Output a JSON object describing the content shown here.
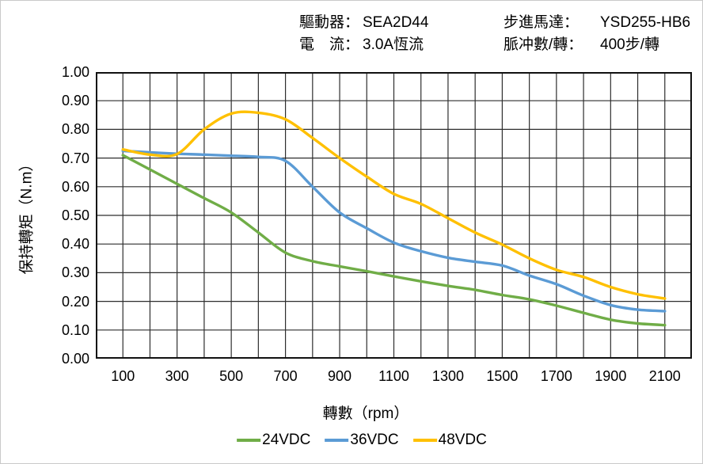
{
  "header": {
    "items": [
      {
        "label": "驅動器：",
        "value": "SEA2D44",
        "col": 0,
        "row": 0
      },
      {
        "label": "電　流：",
        "value": "3.0A恆流",
        "col": 0,
        "row": 1
      },
      {
        "label": "步進馬達：",
        "value": "YSD255-HB6",
        "col": 1,
        "row": 0
      },
      {
        "label": "脈冲數/轉：",
        "value": "400步/轉",
        "col": 1,
        "row": 1
      }
    ]
  },
  "chart_data": {
    "type": "line",
    "title": "",
    "xlabel": "轉數（rpm）",
    "ylabel": "保持轉矩（N.m）",
    "xlim": [
      0,
      2200
    ],
    "ylim": [
      0,
      1.0
    ],
    "grid": {
      "on": true,
      "x_step": 100,
      "y_step": 0.1
    },
    "x_ticks": [
      100,
      300,
      500,
      700,
      900,
      1100,
      1300,
      1500,
      1700,
      1900,
      2100
    ],
    "y_ticks": [
      0.0,
      0.1,
      0.2,
      0.3,
      0.4,
      0.5,
      0.6,
      0.7,
      0.8,
      0.9,
      1.0
    ],
    "y_tick_format_decimals": 2,
    "legend_position": "bottom",
    "x": [
      100,
      200,
      300,
      400,
      500,
      600,
      700,
      800,
      900,
      1000,
      1100,
      1200,
      1300,
      1400,
      1500,
      1600,
      1700,
      1800,
      1900,
      2000,
      2100
    ],
    "series": [
      {
        "name": "24VDC",
        "color": "#70AD47",
        "values": [
          0.71,
          0.66,
          0.61,
          0.56,
          0.51,
          0.44,
          0.37,
          0.34,
          0.322,
          0.305,
          0.287,
          0.27,
          0.254,
          0.24,
          0.222,
          0.207,
          0.185,
          0.16,
          0.136,
          0.123,
          0.117
        ]
      },
      {
        "name": "36VDC",
        "color": "#5B9BD5",
        "values": [
          0.725,
          0.72,
          0.715,
          0.712,
          0.708,
          0.704,
          0.69,
          0.6,
          0.51,
          0.455,
          0.405,
          0.375,
          0.352,
          0.338,
          0.325,
          0.29,
          0.26,
          0.22,
          0.187,
          0.171,
          0.166
        ]
      },
      {
        "name": "48VDC",
        "color": "#FFC000",
        "values": [
          0.73,
          0.712,
          0.714,
          0.8,
          0.855,
          0.858,
          0.835,
          0.77,
          0.7,
          0.635,
          0.575,
          0.54,
          0.49,
          0.44,
          0.398,
          0.35,
          0.31,
          0.285,
          0.25,
          0.225,
          0.21
        ]
      }
    ]
  },
  "style": {
    "grid_color": "#2e2e2e",
    "border_color": "#111111",
    "background": "#ffffff"
  }
}
